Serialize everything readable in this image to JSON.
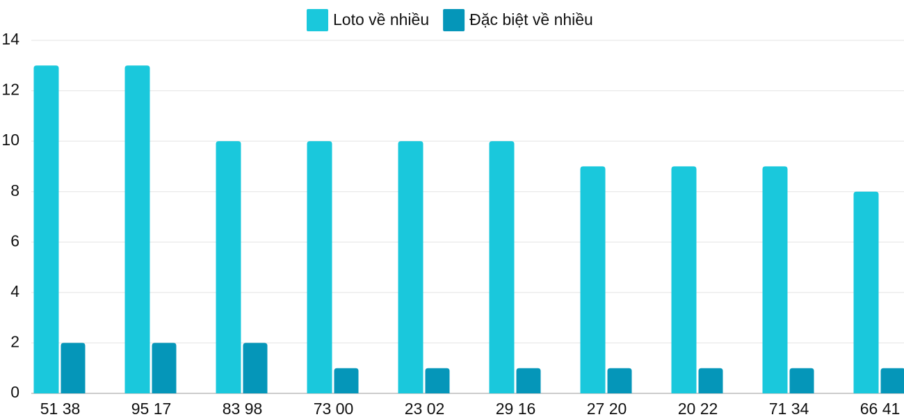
{
  "chart_data": {
    "type": "bar",
    "categories": [
      "51 38",
      "95 17",
      "83 98",
      "73 00",
      "23 02",
      "29 16",
      "27 20",
      "20 22",
      "71 34",
      "66 41"
    ],
    "series": [
      {
        "name": "Loto về nhiều",
        "color": "#1ac8dc",
        "values": [
          13,
          13,
          10,
          10,
          10,
          10,
          9,
          9,
          9,
          8
        ]
      },
      {
        "name": "Đặc biệt về nhiều",
        "color": "#0596b9",
        "values": [
          2,
          2,
          2,
          1,
          1,
          1,
          1,
          1,
          1,
          1
        ]
      }
    ],
    "ylim": [
      0,
      14
    ],
    "yticks": [
      0,
      2,
      4,
      6,
      8,
      10,
      12,
      14
    ],
    "grid": true,
    "legend": "top"
  }
}
